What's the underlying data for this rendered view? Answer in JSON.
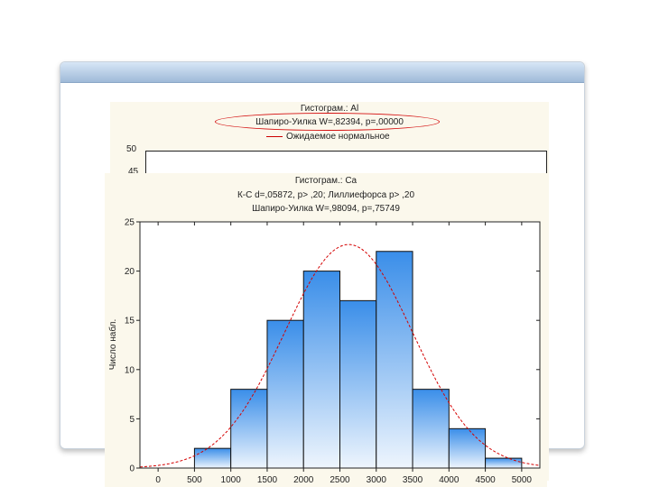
{
  "back_chart": {
    "title": "Гистограм.: Al",
    "shapiro": "Шапиро-Уилка W=,82394, p=,00000",
    "legend_label": "Ожидаемое нормальное",
    "visible_yticks": [
      "50",
      "45"
    ]
  },
  "front_chart": {
    "title": "Гистограм.: Ca",
    "ks": "К-С d=,05872, p> ,20; Лиллиефорса p> ,20",
    "shapiro": "Шапиро-Уилка W=,98094, p=,75749",
    "ylabel": "Число набл."
  },
  "chart_data": {
    "type": "bar",
    "bin_edges": [
      0,
      500,
      1000,
      1500,
      2000,
      2500,
      3000,
      3500,
      4000,
      4500,
      5000
    ],
    "x_ticks": [
      "0",
      "500",
      "1000",
      "1500",
      "2000",
      "2500",
      "3000",
      "3500",
      "4000",
      "4500",
      "5000"
    ],
    "y_ticks": [
      "0",
      "5",
      "10",
      "15",
      "20",
      "25"
    ],
    "values": [
      0,
      2,
      8,
      15,
      20,
      17,
      22,
      8,
      4,
      1
    ],
    "xlim": [
      -250,
      5250
    ],
    "ylim": [
      0,
      25
    ],
    "normal_curve": {
      "mean": 2620,
      "sd": 880,
      "peak": 22.7
    },
    "colors": {
      "bar_top": "#3a8ee9",
      "bar_bottom": "#eef5fd",
      "curve": "#d40000"
    }
  }
}
